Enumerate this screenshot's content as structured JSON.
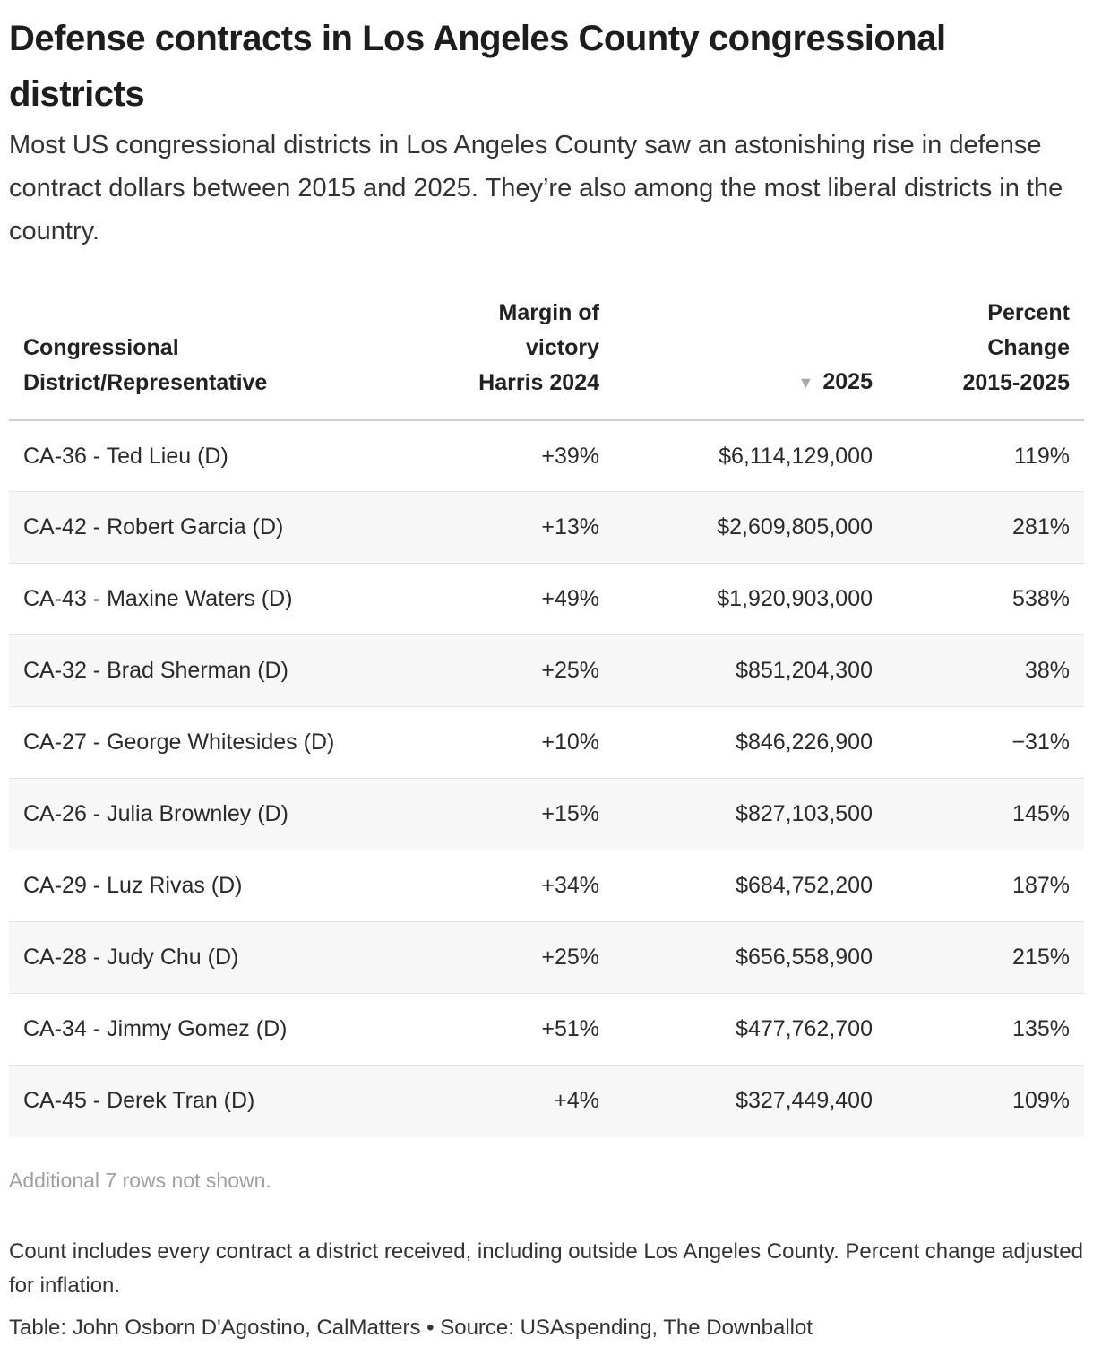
{
  "chart_data": {
    "type": "table",
    "title": "Defense contracts in Los Angeles County congressional districts",
    "subtitle": "Most US congressional districts in Los Angeles County saw an astonishing rise in defense contract dollars between 2015 and 2025. They’re also among the most liberal districts in the country.",
    "columns": [
      {
        "line1": "",
        "line2": "Congressional",
        "line3": "District/Representative"
      },
      {
        "line1": "Margin of",
        "line2": "victory",
        "line3": "Harris 2024"
      },
      {
        "line1": "",
        "line2": "",
        "line3": "2025",
        "sort_indicator": "▼"
      },
      {
        "line1": "Percent",
        "line2": "Change",
        "line3": "2015-2025"
      }
    ],
    "rows": [
      {
        "district": "CA-36 - Ted Lieu (D)",
        "margin": "+39%",
        "contracts_2025": "$6,114,129,000",
        "pct_change": "119%"
      },
      {
        "district": "CA-42 - Robert Garcia (D)",
        "margin": "+13%",
        "contracts_2025": "$2,609,805,000",
        "pct_change": "281%"
      },
      {
        "district": "CA-43 - Maxine Waters (D)",
        "margin": "+49%",
        "contracts_2025": "$1,920,903,000",
        "pct_change": "538%"
      },
      {
        "district": "CA-32 - Brad Sherman (D)",
        "margin": "+25%",
        "contracts_2025": "$851,204,300",
        "pct_change": "38%"
      },
      {
        "district": "CA-27 - George Whitesides (D)",
        "margin": "+10%",
        "contracts_2025": "$846,226,900",
        "pct_change": "−31%"
      },
      {
        "district": "CA-26 - Julia Brownley (D)",
        "margin": "+15%",
        "contracts_2025": "$827,103,500",
        "pct_change": "145%"
      },
      {
        "district": "CA-29 - Luz Rivas (D)",
        "margin": "+34%",
        "contracts_2025": "$684,752,200",
        "pct_change": "187%"
      },
      {
        "district": "CA-28 - Judy Chu (D)",
        "margin": "+25%",
        "contracts_2025": "$656,558,900",
        "pct_change": "215%"
      },
      {
        "district": "CA-34 - Jimmy Gomez (D)",
        "margin": "+51%",
        "contracts_2025": "$477,762,700",
        "pct_change": "135%"
      },
      {
        "district": "CA-45 - Derek Tran (D)",
        "margin": "+4%",
        "contracts_2025": "$327,449,400",
        "pct_change": "109%"
      }
    ],
    "more_rows_note": "Additional 7 rows not shown.",
    "notes": "Count includes every contract a district received, including outside Los Angeles County. Percent change adjusted for inflation.",
    "source": "Table: John Osborn D'Agostino, CalMatters • Source: USAspending, The Downballot"
  }
}
